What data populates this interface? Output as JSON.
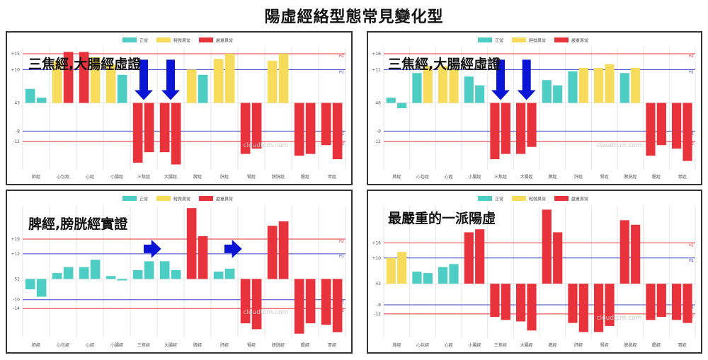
{
  "page_title": "陽虛經絡型態常見變化型",
  "legend": [
    {
      "label": "正常",
      "color": "#4ecdc4"
    },
    {
      "label": "輕微異常",
      "color": "#f7dc5b"
    },
    {
      "label": "嚴重異常",
      "color": "#e8323c"
    }
  ],
  "watermark": "cloudtcm.com",
  "colors": {
    "red_line": "#e8323c",
    "blue_line": "#3a45c9",
    "arrow": "#0a14d4",
    "grid": "#e6e6e6",
    "tick": "#555555"
  },
  "chart_data": [
    {
      "type": "bar",
      "heading": "三焦經,大腸經虛證",
      "categories": [
        "肺經",
        "心包經",
        "心經",
        "小腸經",
        "三焦經",
        "大腸經",
        "脾經",
        "肝經",
        "腎經",
        "膀胱經",
        "膽經",
        "胃經"
      ],
      "series": [
        {
          "values": [
            [
              8,
              3
            ],
            [
              24,
              29
            ],
            [
              29,
              26
            ],
            [
              22,
              16
            ],
            [
              -34,
              -28
            ],
            [
              -28,
              -35
            ],
            [
              19,
              16
            ],
            [
              25,
              28
            ],
            [
              -29,
              -26
            ],
            [
              24,
              28
            ],
            [
              -30,
              -29
            ],
            [
              -24,
              -32
            ]
          ]
        }
      ],
      "levels": [
        {
          "label": "+15",
          "value": 28,
          "color": "red",
          "tag": "H2"
        },
        {
          "label": "+10",
          "value": 19,
          "color": "blue",
          "tag": "H1"
        },
        {
          "label": "43",
          "value": 0,
          "color": "none",
          "tag": ""
        },
        {
          "label": "-8",
          "value": -16,
          "color": "blue",
          "tag": "L1"
        },
        {
          "label": "-12",
          "value": -22,
          "color": "red",
          "tag": "L2"
        }
      ],
      "arrows": [
        {
          "direction": "down",
          "at": 4
        },
        {
          "direction": "down",
          "at": 5
        }
      ],
      "ylim": [
        -38,
        32
      ]
    },
    {
      "type": "bar",
      "heading": "三焦經,大腸經虛證",
      "categories": [
        "肺經",
        "心包經",
        "心經",
        "小腸經",
        "三焦經",
        "大腸經",
        "脾經",
        "肝經",
        "腎經",
        "膀胱經",
        "膽經",
        "胃經"
      ],
      "series": [
        {
          "values": [
            [
              3,
              -3
            ],
            [
              17,
              21
            ],
            [
              21,
              19
            ],
            [
              15,
              10
            ],
            [
              -32,
              -29
            ],
            [
              -29,
              -25
            ],
            [
              13,
              10
            ],
            [
              18,
              20
            ],
            [
              20,
              22
            ],
            [
              17,
              20
            ],
            [
              -30,
              -24
            ],
            [
              -26,
              -33
            ]
          ]
        }
      ],
      "levels": [
        {
          "label": "+16",
          "value": 28,
          "color": "red",
          "tag": "H2"
        },
        {
          "label": "+11",
          "value": 19,
          "color": "blue",
          "tag": "H1"
        },
        {
          "label": "46",
          "value": 0,
          "color": "none",
          "tag": ""
        },
        {
          "label": "-9",
          "value": -16,
          "color": "blue",
          "tag": "L1"
        },
        {
          "label": "-12",
          "value": -22,
          "color": "red",
          "tag": "L2"
        }
      ],
      "arrows": [
        {
          "direction": "down",
          "at": 4
        },
        {
          "direction": "down",
          "at": 5
        }
      ],
      "ylim": [
        -38,
        32
      ]
    },
    {
      "type": "bar",
      "heading": "脾經,膀胱經實證",
      "categories": [
        "肺經",
        "心包經",
        "心經",
        "小腸經",
        "三焦經",
        "大腸經",
        "脾經",
        "肝經",
        "腎經",
        "膀胱經",
        "膽經",
        "胃經"
      ],
      "series": [
        {
          "values": [
            [
              -7,
              -12
            ],
            [
              4,
              8
            ],
            [
              8,
              13
            ],
            [
              2,
              -1
            ],
            [
              6,
              12
            ],
            [
              12,
              6
            ],
            [
              48,
              29
            ],
            [
              5,
              7
            ],
            [
              -30,
              -34
            ],
            [
              36,
              39
            ],
            [
              -37,
              -30
            ],
            [
              -31,
              -36
            ]
          ]
        }
      ],
      "levels": [
        {
          "label": "+19",
          "value": 27,
          "color": "red",
          "tag": "H2"
        },
        {
          "label": "+12",
          "value": 17,
          "color": "blue",
          "tag": "H1"
        },
        {
          "label": "52",
          "value": 0,
          "color": "none",
          "tag": ""
        },
        {
          "label": "-10",
          "value": -14,
          "color": "blue",
          "tag": "L1"
        },
        {
          "label": "-14",
          "value": -20,
          "color": "red",
          "tag": "L2"
        }
      ],
      "arrows": [
        {
          "direction": "right",
          "at": 5
        },
        {
          "direction": "right",
          "at": 8
        }
      ],
      "ylim": [
        -40,
        50
      ]
    },
    {
      "type": "bar",
      "heading": "最嚴重的一派陽虛",
      "categories": [
        "肺經",
        "心包經",
        "心經",
        "小腸經",
        "三焦經",
        "大腸經",
        "脾經",
        "肝經",
        "腎經",
        "膀胱經",
        "膽經",
        "胃經"
      ],
      "series": [
        {
          "values": [
            [
              17,
              21
            ],
            [
              8,
              7
            ],
            [
              11,
              13
            ],
            [
              34,
              36
            ],
            [
              -22,
              -24
            ],
            [
              -25,
              -31
            ],
            [
              49,
              34
            ],
            [
              -26,
              -32
            ],
            [
              -32,
              -28
            ],
            [
              42,
              39
            ],
            [
              -24,
              -22
            ],
            [
              -24,
              -26
            ]
          ]
        }
      ],
      "levels": [
        {
          "label": "+16",
          "value": 27,
          "color": "red",
          "tag": "H2"
        },
        {
          "label": "+10",
          "value": 17,
          "color": "blue",
          "tag": "H1"
        },
        {
          "label": "43",
          "value": 0,
          "color": "none",
          "tag": ""
        },
        {
          "label": "-8",
          "value": -14,
          "color": "blue",
          "tag": "L1"
        },
        {
          "label": "-12",
          "value": -20,
          "color": "red",
          "tag": "L2"
        }
      ],
      "arrows": [],
      "ylim": [
        -36,
        52
      ]
    }
  ]
}
